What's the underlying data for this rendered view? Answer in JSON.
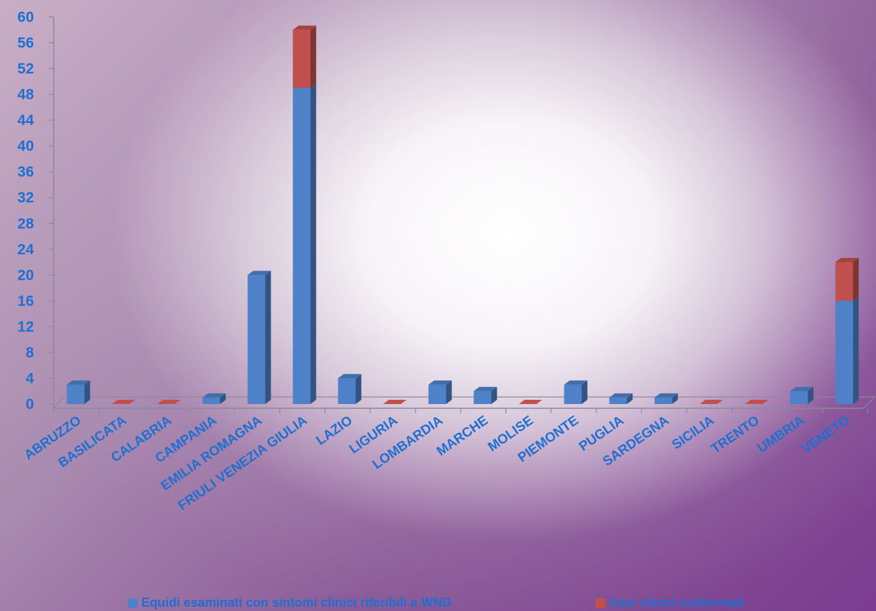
{
  "chart_data": {
    "type": "bar",
    "stacked": true,
    "three_d": true,
    "categories": [
      "ABRUZZO",
      "BASILICATA",
      "CALABRIA",
      "CAMPANIA",
      "EMILIA ROMAGNA",
      "FRIULI VENEZIA GIULIA",
      "LAZIO",
      "LIGURIA",
      "LOMBARDIA",
      "MARCHE",
      "MOLISE",
      "PIEMONTE",
      "PUGLIA",
      "SARDEGNA",
      "SICILIA",
      "TRENTO",
      "UMBRIA",
      "VENETO"
    ],
    "series": [
      {
        "name": "Equidi esaminati con sintomi clinici riferibili a WND",
        "color": "#4f81c8",
        "values": [
          3,
          0,
          0,
          1,
          20,
          49,
          4,
          0,
          3,
          2,
          0,
          3,
          1,
          1,
          0,
          0,
          2,
          16
        ]
      },
      {
        "name": "Casi clinici confermati",
        "color": "#c0504d",
        "values": [
          0,
          0,
          0,
          0,
          0,
          9,
          0,
          0,
          0,
          0,
          0,
          0,
          0,
          0,
          0,
          0,
          0,
          6
        ]
      }
    ],
    "yticks": [
      0,
      4,
      8,
      12,
      16,
      20,
      24,
      28,
      32,
      36,
      40,
      44,
      48,
      52,
      56,
      60
    ],
    "ylim": [
      0,
      60
    ],
    "grid": false,
    "legend_position": "bottom",
    "title": "",
    "xlabel": "",
    "ylabel": ""
  },
  "colors": {
    "label": "#1f6fd1",
    "axis": "#8a8a9a"
  }
}
